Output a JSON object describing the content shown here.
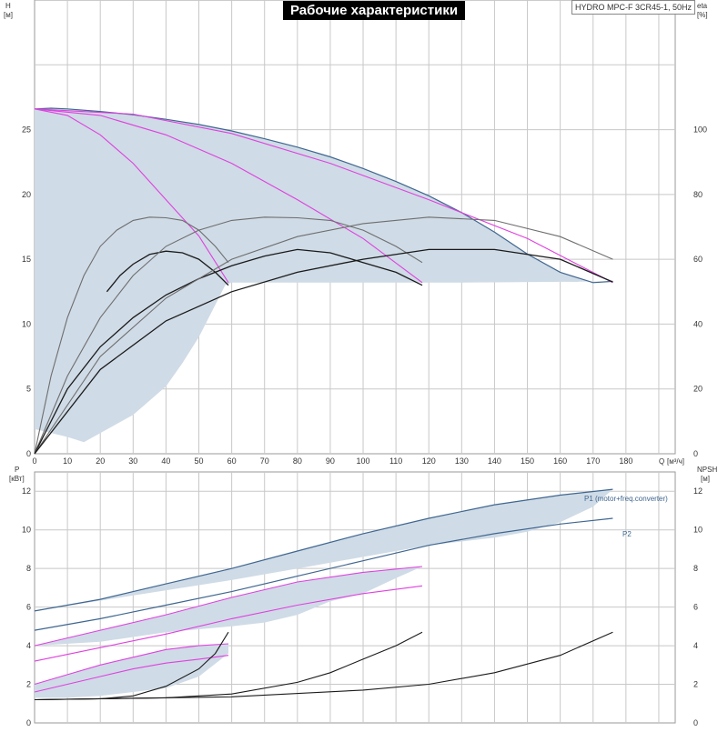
{
  "header": {
    "title": "Рабочие характеристики",
    "model": "HYDRO MPC-F 3CR45-1, 50Hz"
  },
  "colors": {
    "envelope_fill": "#cfdbe6",
    "envelope_edge": "#3f6690",
    "magenta": "#e040e0",
    "black": "#1a1a1a",
    "gray": "#6e6e6e",
    "grid": "#c8c8c8"
  },
  "chart_data": [
    {
      "type": "line",
      "name": "upper",
      "xlabel": "Q [м³/ч]",
      "ylabel_left": "H [м]",
      "ylabel_left_line1": "H",
      "ylabel_left_line2": "[м]",
      "ylabel_right": "eta [%]",
      "ylabel_right_line1": "eta",
      "ylabel_right_line2": "[%]",
      "xlabel_q": "Q",
      "xlabel_unit": "[м³/ч]",
      "xlim": [
        0,
        195
      ],
      "ylim_left": [
        0,
        35
      ],
      "ylim_right": [
        0,
        140
      ],
      "x_ticks": [
        0,
        10,
        20,
        30,
        40,
        50,
        60,
        70,
        80,
        90,
        100,
        110,
        120,
        130,
        140,
        150,
        160,
        170,
        180
      ],
      "y_ticks_left": [
        0,
        5,
        10,
        15,
        20,
        25
      ],
      "y_ticks_right": [
        0,
        20,
        40,
        60,
        80,
        100
      ],
      "grid": true,
      "envelope": {
        "top_Q": [
          0,
          5,
          10,
          20,
          30,
          40,
          50,
          60,
          70,
          80,
          90,
          100,
          110,
          120,
          130,
          140,
          150,
          160,
          170,
          176
        ],
        "top_H": [
          26.6,
          26.65,
          26.6,
          26.4,
          26.15,
          25.8,
          25.4,
          24.9,
          24.3,
          23.65,
          22.9,
          22.0,
          21.0,
          19.9,
          18.6,
          17.1,
          15.4,
          14.0,
          13.2,
          13.3
        ],
        "bottom_Q": [
          176,
          130,
          118,
          60,
          58,
          54,
          50,
          45,
          40,
          30,
          20,
          15,
          10,
          0
        ],
        "bottom_H": [
          13.3,
          13.2,
          13.2,
          13.2,
          13.0,
          11.0,
          9.0,
          7.0,
          5.2,
          3.0,
          1.6,
          0.9,
          1.3,
          1.9
        ]
      },
      "series": [
        {
          "group": "head",
          "color": "magenta",
          "Q": [
            0,
            10,
            20,
            30,
            40,
            50,
            59
          ],
          "H": [
            26.6,
            26.1,
            24.6,
            22.4,
            19.6,
            16.8,
            13.2
          ]
        },
        {
          "group": "head",
          "color": "magenta",
          "Q": [
            0,
            20,
            40,
            60,
            80,
            100,
            118
          ],
          "H": [
            26.6,
            26.1,
            24.6,
            22.4,
            19.6,
            16.6,
            13.2
          ]
        },
        {
          "group": "head",
          "color": "magenta",
          "Q": [
            0,
            30,
            60,
            90,
            120,
            150,
            176
          ],
          "H": [
            26.6,
            26.2,
            24.7,
            22.4,
            19.6,
            16.6,
            13.2
          ]
        },
        {
          "group": "efficiency",
          "color": "gray",
          "Q": [
            0,
            5,
            10,
            15,
            20,
            25,
            30,
            35,
            40,
            45,
            50,
            55,
            59
          ],
          "eta": [
            0,
            24,
            42,
            55,
            64,
            69,
            72,
            73,
            72.8,
            72,
            69,
            64,
            59
          ]
        },
        {
          "group": "efficiency",
          "color": "black",
          "Q": [
            22,
            26,
            30,
            35,
            40,
            45,
            50,
            55,
            59
          ],
          "eta": [
            50,
            55,
            58.5,
            61.5,
            62.5,
            62,
            60,
            56,
            52
          ]
        },
        {
          "group": "efficiency",
          "color": "gray",
          "Q": [
            0,
            10,
            20,
            30,
            40,
            50,
            60,
            70,
            80,
            90,
            100,
            110,
            118
          ],
          "eta": [
            0,
            24,
            42,
            55,
            64,
            69,
            72,
            73,
            72.8,
            72,
            69,
            64,
            59
          ]
        },
        {
          "group": "efficiency",
          "color": "black",
          "Q": [
            0,
            10,
            20,
            30,
            40,
            50,
            60,
            70,
            80,
            90,
            100,
            110,
            118
          ],
          "eta": [
            0,
            20,
            33,
            42,
            49,
            54,
            58,
            61,
            63,
            62,
            59,
            56,
            52
          ]
        },
        {
          "group": "efficiency",
          "color": "gray",
          "Q": [
            0,
            20,
            40,
            60,
            80,
            100,
            120,
            140,
            160,
            176
          ],
          "eta": [
            0,
            30,
            48,
            60,
            67,
            71,
            73,
            72,
            67,
            60
          ]
        },
        {
          "group": "efficiency",
          "color": "black",
          "Q": [
            0,
            20,
            40,
            60,
            80,
            100,
            120,
            140,
            160,
            176
          ],
          "eta": [
            0,
            26,
            41,
            50,
            56,
            60,
            63,
            63,
            60,
            53
          ]
        }
      ]
    },
    {
      "type": "line",
      "name": "lower",
      "xlabel": "",
      "ylabel_left": "P [кВт]",
      "ylabel_left_line1": "P",
      "ylabel_left_line2": "[кВт]",
      "ylabel_right": "NPSH [м]",
      "ylabel_right_line1": "NPSH",
      "ylabel_right_line2": "[м]",
      "xlim": [
        0,
        195
      ],
      "ylim_left": [
        0,
        13
      ],
      "ylim_right": [
        0,
        13
      ],
      "y_ticks_left": [
        0,
        2,
        4,
        6,
        8,
        10,
        12
      ],
      "y_ticks_right": [
        0,
        2,
        4,
        6,
        8,
        10,
        12
      ],
      "grid": true,
      "labels": {
        "p1": "P1 (motor+freq.converter)",
        "p2": "P2"
      },
      "bands": [
        {
          "top_Q": [
            0,
            20,
            40,
            60,
            80,
            100,
            120,
            140,
            160,
            176
          ],
          "top_P": [
            5.8,
            6.4,
            7.2,
            8.0,
            8.9,
            9.8,
            10.6,
            11.3,
            11.8,
            12.1
          ],
          "bottom_Q": [
            176,
            170,
            160,
            150,
            140,
            120,
            100,
            80,
            60,
            0
          ],
          "bottom_P": [
            12.1,
            11.2,
            10.4,
            9.9,
            9.6,
            9.2,
            8.6,
            8.0,
            7.4,
            5.8
          ]
        },
        {
          "top_Q": [
            0,
            20,
            40,
            60,
            80,
            100,
            118
          ],
          "top_P": [
            4.0,
            4.8,
            5.6,
            6.5,
            7.3,
            7.8,
            8.1
          ],
          "bottom_Q": [
            118,
            110,
            100,
            90,
            80,
            70,
            60,
            40,
            20,
            0
          ],
          "bottom_P": [
            8.1,
            7.5,
            6.7,
            6.3,
            5.6,
            5.2,
            5.0,
            4.7,
            4.2,
            4.0
          ]
        },
        {
          "top_Q": [
            0,
            10,
            20,
            30,
            40,
            50,
            59
          ],
          "top_P": [
            2.0,
            2.5,
            3.0,
            3.4,
            3.8,
            4.0,
            4.1
          ],
          "bottom_Q": [
            59,
            50,
            40,
            30,
            20,
            10,
            0
          ],
          "bottom_P": [
            3.6,
            2.4,
            1.8,
            1.6,
            1.4,
            1.3,
            1.3
          ]
        }
      ],
      "series": [
        {
          "group": "power",
          "color": "edge",
          "label": "P1 (motor+freq.converter)",
          "Q": [
            0,
            20,
            40,
            60,
            80,
            100,
            120,
            140,
            160,
            176
          ],
          "P": [
            5.8,
            6.4,
            7.2,
            8.0,
            8.9,
            9.8,
            10.6,
            11.3,
            11.8,
            12.1
          ]
        },
        {
          "group": "power",
          "color": "edge",
          "label": "P2",
          "Q": [
            0,
            20,
            40,
            60,
            80,
            100,
            120,
            140,
            160,
            176
          ],
          "P": [
            4.8,
            5.4,
            6.1,
            6.8,
            7.6,
            8.4,
            9.2,
            9.8,
            10.3,
            10.6
          ]
        },
        {
          "group": "power",
          "color": "magenta",
          "Q": [
            0,
            20,
            40,
            60,
            80,
            100,
            118
          ],
          "P": [
            4.0,
            4.8,
            5.6,
            6.5,
            7.3,
            7.8,
            8.1
          ]
        },
        {
          "group": "power",
          "color": "magenta",
          "Q": [
            0,
            20,
            40,
            60,
            80,
            100,
            118
          ],
          "P": [
            3.2,
            3.9,
            4.6,
            5.4,
            6.1,
            6.7,
            7.1
          ]
        },
        {
          "group": "power",
          "color": "magenta",
          "Q": [
            0,
            10,
            20,
            30,
            40,
            50,
            59
          ],
          "P": [
            2.0,
            2.5,
            3.0,
            3.4,
            3.8,
            4.0,
            4.1
          ]
        },
        {
          "group": "power",
          "color": "magenta",
          "Q": [
            0,
            10,
            20,
            30,
            40,
            50,
            59
          ],
          "P": [
            1.6,
            2.0,
            2.4,
            2.8,
            3.1,
            3.3,
            3.5
          ]
        },
        {
          "group": "npsh",
          "color": "black",
          "Q": [
            0,
            20,
            30,
            40,
            50,
            55,
            59
          ],
          "NPSH": [
            1.2,
            1.25,
            1.4,
            1.9,
            2.8,
            3.6,
            4.7
          ]
        },
        {
          "group": "npsh",
          "color": "black",
          "Q": [
            0,
            40,
            60,
            80,
            90,
            100,
            110,
            118
          ],
          "NPSH": [
            1.2,
            1.3,
            1.5,
            2.1,
            2.6,
            3.3,
            4.0,
            4.7
          ]
        },
        {
          "group": "npsh",
          "color": "black",
          "Q": [
            0,
            60,
            100,
            120,
            140,
            160,
            176
          ],
          "NPSH": [
            1.2,
            1.35,
            1.7,
            2.0,
            2.6,
            3.5,
            4.7
          ]
        }
      ]
    }
  ]
}
